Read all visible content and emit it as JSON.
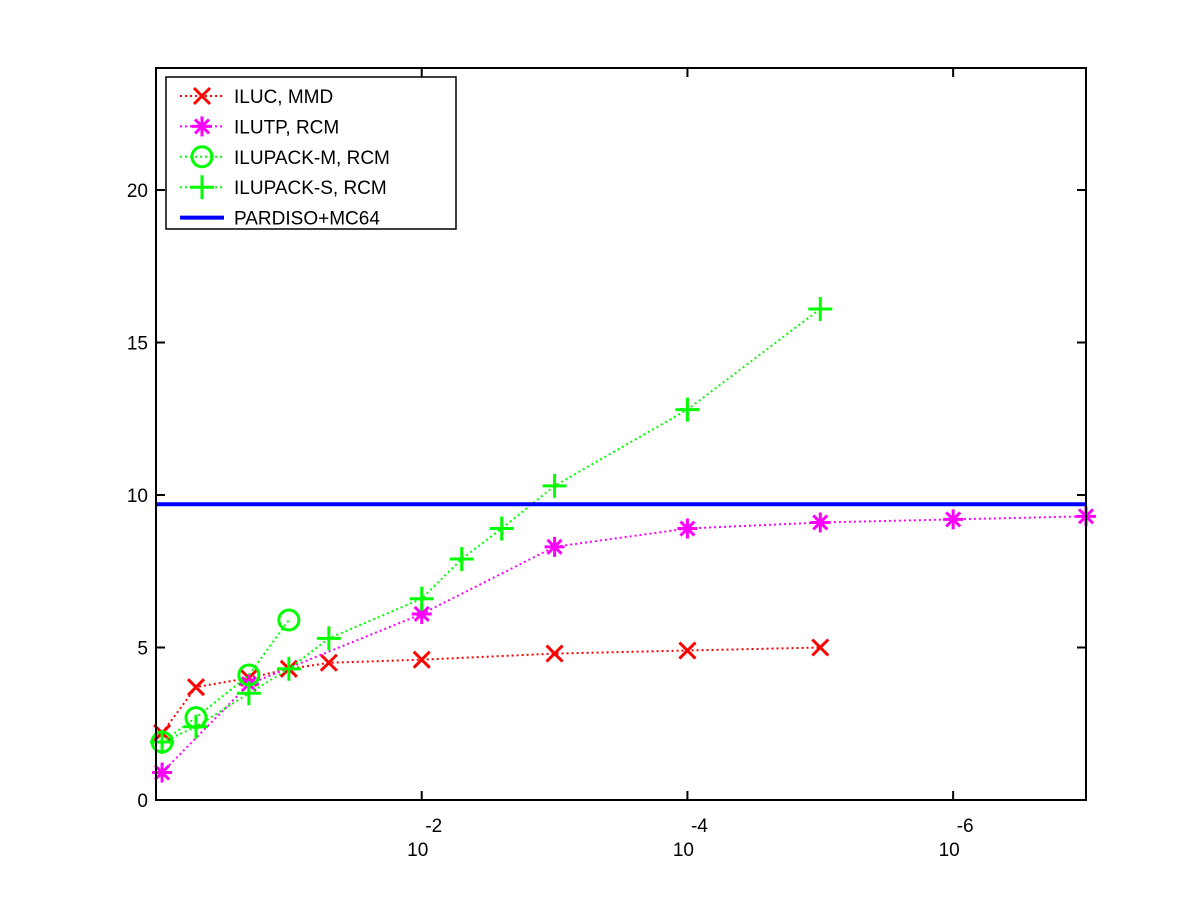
{
  "chart_data": {
    "type": "line",
    "x_scale": "log",
    "x_reversed": true,
    "xlim": [
      1,
      1e-07
    ],
    "ylim": [
      0,
      24
    ],
    "grid": false,
    "legend_position": "top-left",
    "y_ticks": [
      "0",
      "5",
      "10",
      "15",
      "20"
    ],
    "x_ticks": [
      {
        "value": 0.01,
        "base": "10",
        "exp": "-2"
      },
      {
        "value": 0.0001,
        "base": "10",
        "exp": "-4"
      },
      {
        "value": 1e-06,
        "base": "10",
        "exp": "-6"
      }
    ],
    "series": [
      {
        "name": "ILUC, MMD",
        "color": "#ff0000",
        "marker": "x",
        "line_style": "dotted",
        "points": [
          [
            0.9,
            2.2
          ],
          [
            0.5,
            3.7
          ],
          [
            0.2,
            4.0
          ],
          [
            0.1,
            4.3
          ],
          [
            0.05,
            4.5
          ],
          [
            0.01,
            4.6
          ],
          [
            0.001,
            4.8
          ],
          [
            0.0001,
            4.9
          ],
          [
            1e-05,
            5.0
          ]
        ]
      },
      {
        "name": "ILUTP, RCM",
        "color": "#ff00ff",
        "marker": "asterisk",
        "line_style": "dotted",
        "points": [
          [
            0.9,
            0.9
          ],
          [
            0.2,
            3.8
          ],
          [
            0.01,
            6.1
          ],
          [
            0.001,
            8.3
          ],
          [
            0.0001,
            8.9
          ],
          [
            1e-05,
            9.1
          ],
          [
            1e-06,
            9.2
          ],
          [
            1e-07,
            9.3
          ]
        ]
      },
      {
        "name": "ILUPACK-M, RCM",
        "color": "#00ff00",
        "marker": "circle",
        "line_style": "dotted",
        "points": [
          [
            0.9,
            1.9
          ],
          [
            0.5,
            2.7
          ],
          [
            0.2,
            4.1
          ],
          [
            0.1,
            5.9
          ]
        ]
      },
      {
        "name": "ILUPACK-S, RCM",
        "color": "#00ff00",
        "marker": "plus",
        "line_style": "dotted",
        "points": [
          [
            0.9,
            1.9
          ],
          [
            0.5,
            2.4
          ],
          [
            0.2,
            3.5
          ],
          [
            0.1,
            4.3
          ],
          [
            0.05,
            5.3
          ],
          [
            0.01,
            6.6
          ],
          [
            0.005,
            7.9
          ],
          [
            0.0025,
            8.9
          ],
          [
            0.001,
            10.3
          ],
          [
            0.0001,
            12.8
          ],
          [
            1e-05,
            16.1
          ]
        ]
      },
      {
        "name": "PARDISO+MC64",
        "color": "#0000ff",
        "marker": "none",
        "line_style": "solid",
        "points": [
          [
            1,
            9.7
          ],
          [
            1e-07,
            9.7
          ]
        ]
      }
    ]
  }
}
